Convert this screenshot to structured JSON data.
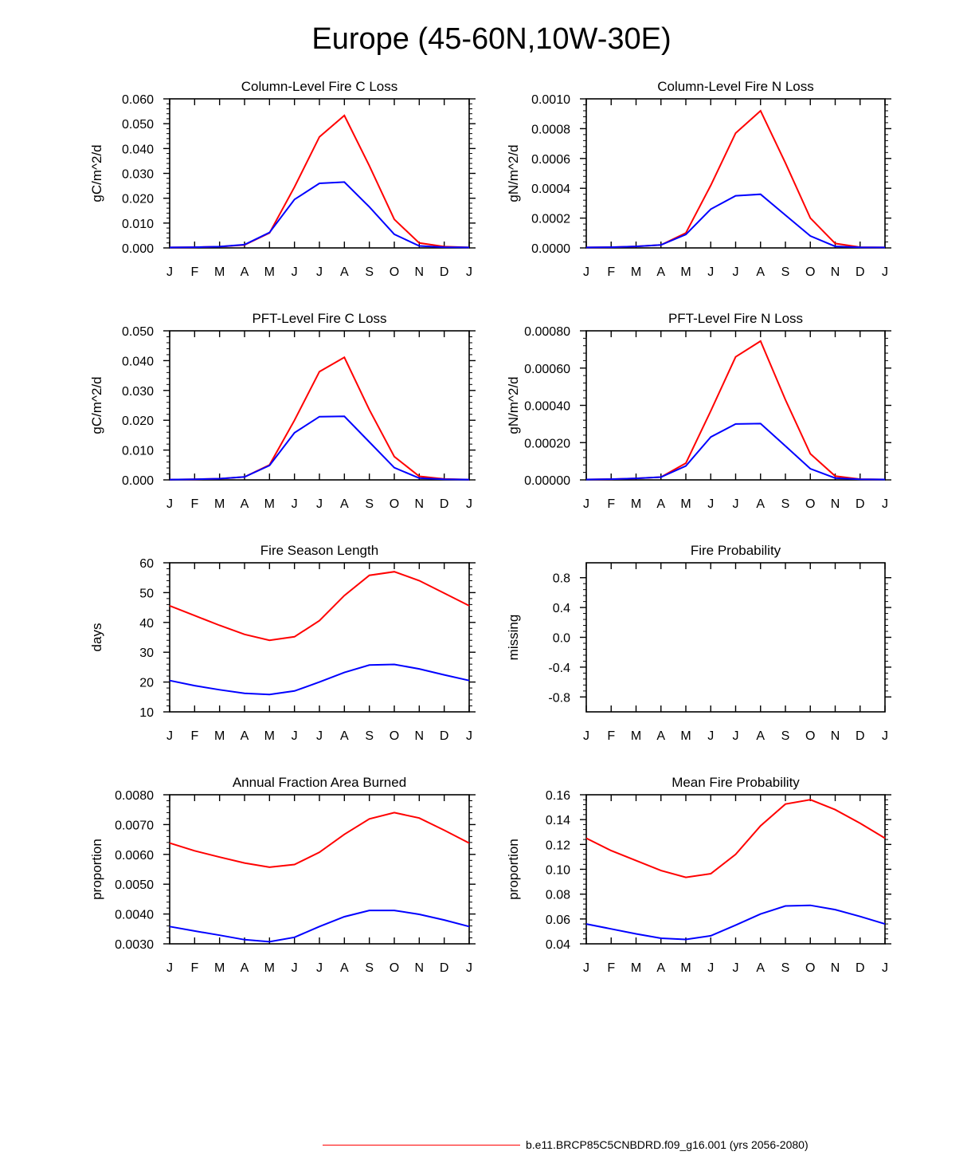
{
  "title": "Europe (45-60N,10W-30E)",
  "legend": {
    "label": "b.e11.BRCP85C5CNBDRD.f09_g16.001 (yrs 2056-2080)",
    "color": "#ff0000"
  },
  "colors": {
    "series_a": "#ff0000",
    "series_b": "#0000ff"
  },
  "chart_data": [
    {
      "type": "line",
      "title": "Column-Level Fire C Loss",
      "ylabel": "gC/m^2/d",
      "xlabel": "",
      "categories": [
        "J",
        "F",
        "M",
        "A",
        "M",
        "J",
        "J",
        "A",
        "S",
        "O",
        "N",
        "D",
        "J"
      ],
      "ylim": [
        0,
        0.06
      ],
      "yticks": [
        "0.000",
        "0.010",
        "0.020",
        "0.030",
        "0.040",
        "0.050",
        "0.060"
      ],
      "series": [
        {
          "name": "red",
          "color": "#ff0000",
          "values": [
            0.0002,
            0.0003,
            0.0005,
            0.0012,
            0.006,
            0.0245,
            0.0447,
            0.0533,
            0.033,
            0.0115,
            0.002,
            0.0005,
            0.0002
          ]
        },
        {
          "name": "blue",
          "color": "#0000ff",
          "values": [
            0.0002,
            0.0003,
            0.0005,
            0.0013,
            0.0062,
            0.0195,
            0.026,
            0.0265,
            0.0165,
            0.0055,
            0.0008,
            0.0003,
            0.0002
          ]
        }
      ]
    },
    {
      "type": "line",
      "title": "Column-Level Fire N Loss",
      "ylabel": "gN/m^2/d",
      "xlabel": "",
      "categories": [
        "J",
        "F",
        "M",
        "A",
        "M",
        "J",
        "J",
        "A",
        "S",
        "O",
        "N",
        "D",
        "J"
      ],
      "ylim": [
        0,
        0.001
      ],
      "yticks": [
        "0.0000",
        "0.0002",
        "0.0004",
        "0.0006",
        "0.0008",
        "0.0010"
      ],
      "series": [
        {
          "name": "red",
          "color": "#ff0000",
          "values": [
            3e-06,
            5e-06,
            1e-05,
            2e-05,
            0.0001,
            0.00042,
            0.00077,
            0.00092,
            0.00057,
            0.0002,
            3e-05,
            5e-06,
            3e-06
          ]
        },
        {
          "name": "blue",
          "color": "#0000ff",
          "values": [
            3e-06,
            5e-06,
            1e-05,
            2e-05,
            9e-05,
            0.00026,
            0.00035,
            0.00036,
            0.00022,
            8e-05,
            1e-05,
            4e-06,
            3e-06
          ]
        }
      ]
    },
    {
      "type": "line",
      "title": "PFT-Level Fire C Loss",
      "ylabel": "gC/m^2/d",
      "xlabel": "",
      "categories": [
        "J",
        "F",
        "M",
        "A",
        "M",
        "J",
        "J",
        "A",
        "S",
        "O",
        "N",
        "D",
        "J"
      ],
      "ylim": [
        0,
        0.05
      ],
      "yticks": [
        "0.000",
        "0.010",
        "0.020",
        "0.030",
        "0.040",
        "0.050"
      ],
      "series": [
        {
          "name": "red",
          "color": "#ff0000",
          "values": [
            0.0001,
            0.0002,
            0.0004,
            0.001,
            0.005,
            0.02,
            0.0363,
            0.0411,
            0.0235,
            0.0078,
            0.0012,
            0.0003,
            0.0001
          ]
        },
        {
          "name": "blue",
          "color": "#0000ff",
          "values": [
            0.0001,
            0.0002,
            0.0004,
            0.001,
            0.0048,
            0.0158,
            0.0212,
            0.0213,
            0.0127,
            0.0041,
            0.0006,
            0.0002,
            0.0001
          ]
        }
      ]
    },
    {
      "type": "line",
      "title": "PFT-Level Fire N Loss",
      "ylabel": "gN/m^2/d",
      "xlabel": "",
      "categories": [
        "J",
        "F",
        "M",
        "A",
        "M",
        "J",
        "J",
        "A",
        "S",
        "O",
        "N",
        "D",
        "J"
      ],
      "ylim": [
        0,
        0.0008
      ],
      "yticks": [
        "0.00000",
        "0.00020",
        "0.00040",
        "0.00060",
        "0.00080"
      ],
      "series": [
        {
          "name": "red",
          "color": "#ff0000",
          "values": [
            2e-06,
            4e-06,
            8e-06,
            1.5e-05,
            9e-05,
            0.00037,
            0.00066,
            0.000745,
            0.00043,
            0.00014,
            2e-05,
            4e-06,
            2e-06
          ]
        },
        {
          "name": "blue",
          "color": "#0000ff",
          "values": [
            2e-06,
            4e-06,
            8e-06,
            1.5e-05,
            7.5e-05,
            0.00023,
            0.0003,
            0.000302,
            0.000182,
            6e-05,
            1e-05,
            3e-06,
            2e-06
          ]
        }
      ]
    },
    {
      "type": "line",
      "title": "Fire Season Length",
      "ylabel": "days",
      "xlabel": "",
      "categories": [
        "J",
        "F",
        "M",
        "A",
        "M",
        "J",
        "J",
        "A",
        "S",
        "O",
        "N",
        "D",
        "J"
      ],
      "ylim": [
        10,
        60
      ],
      "yticks": [
        "10",
        "20",
        "30",
        "40",
        "50",
        "60"
      ],
      "series": [
        {
          "name": "red",
          "color": "#ff0000",
          "values": [
            45.6,
            42.3,
            39.0,
            36.0,
            34.0,
            35.2,
            40.6,
            49.0,
            55.8,
            57.0,
            54.0,
            49.8,
            45.6
          ]
        },
        {
          "name": "blue",
          "color": "#0000ff",
          "values": [
            20.5,
            18.8,
            17.4,
            16.2,
            15.8,
            17.0,
            20.0,
            23.2,
            25.7,
            25.9,
            24.4,
            22.4,
            20.5
          ]
        }
      ]
    },
    {
      "type": "line",
      "title": "Fire Probability",
      "ylabel": "missing",
      "xlabel": "",
      "categories": [
        "J",
        "F",
        "M",
        "A",
        "M",
        "J",
        "J",
        "A",
        "S",
        "O",
        "N",
        "D",
        "J"
      ],
      "ylim": [
        -1,
        1
      ],
      "yticks": [
        "-0.8",
        "-0.4",
        "0.0",
        "0.4",
        "0.8"
      ],
      "ytickvals": [
        -0.8,
        -0.4,
        0.0,
        0.4,
        0.8
      ],
      "series": []
    },
    {
      "type": "line",
      "title": "Annual Fraction Area Burned",
      "ylabel": "proportion",
      "xlabel": "",
      "categories": [
        "J",
        "F",
        "M",
        "A",
        "M",
        "J",
        "J",
        "A",
        "S",
        "O",
        "N",
        "D",
        "J"
      ],
      "ylim": [
        0.003,
        0.008
      ],
      "yticks": [
        "0.0030",
        "0.0040",
        "0.0050",
        "0.0060",
        "0.0070",
        "0.0080"
      ],
      "series": [
        {
          "name": "red",
          "color": "#ff0000",
          "values": [
            0.00638,
            0.00612,
            0.00591,
            0.00571,
            0.00557,
            0.00566,
            0.00607,
            0.00667,
            0.00719,
            0.0074,
            0.00722,
            0.00681,
            0.00638
          ]
        },
        {
          "name": "blue",
          "color": "#0000ff",
          "values": [
            0.00358,
            0.00343,
            0.00329,
            0.00314,
            0.00307,
            0.00322,
            0.00358,
            0.00391,
            0.00412,
            0.00412,
            0.00399,
            0.0038,
            0.00358
          ]
        }
      ]
    },
    {
      "type": "line",
      "title": "Mean Fire Probability",
      "ylabel": "proportion",
      "xlabel": "",
      "categories": [
        "J",
        "F",
        "M",
        "A",
        "M",
        "J",
        "J",
        "A",
        "S",
        "O",
        "N",
        "D",
        "J"
      ],
      "ylim": [
        0.04,
        0.16
      ],
      "yticks": [
        "0.04",
        "0.06",
        "0.08",
        "0.10",
        "0.12",
        "0.14",
        "0.16"
      ],
      "series": [
        {
          "name": "red",
          "color": "#ff0000",
          "values": [
            0.125,
            0.115,
            0.107,
            0.099,
            0.0935,
            0.0965,
            0.112,
            0.135,
            0.1525,
            0.156,
            0.148,
            0.137,
            0.125
          ]
        },
        {
          "name": "blue",
          "color": "#0000ff",
          "values": [
            0.056,
            0.052,
            0.048,
            0.0445,
            0.0435,
            0.0465,
            0.055,
            0.064,
            0.0705,
            0.071,
            0.0675,
            0.062,
            0.056
          ]
        }
      ]
    }
  ]
}
